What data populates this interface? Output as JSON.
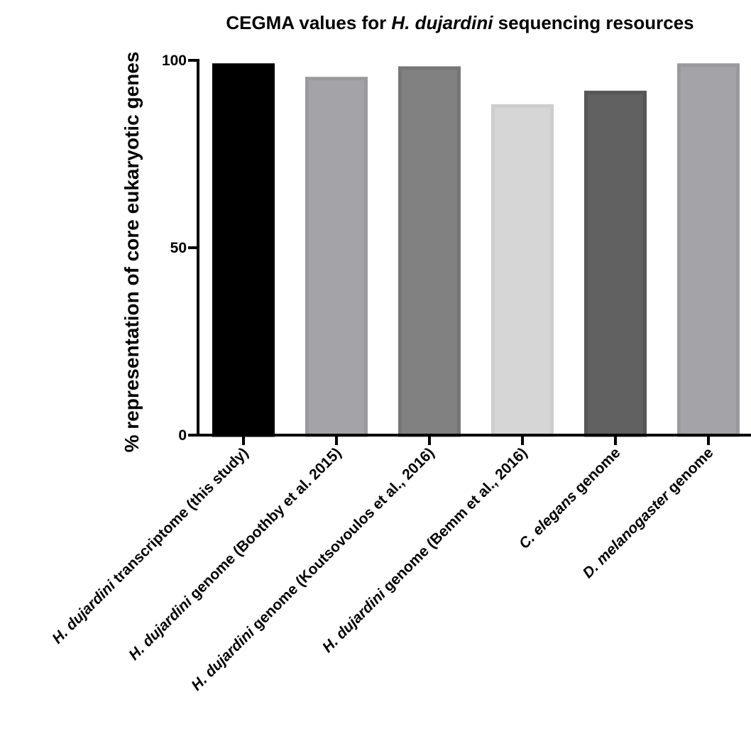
{
  "chart_data": {
    "type": "bar",
    "title_parts": [
      {
        "text": "CEGMA values for ",
        "italic": false
      },
      {
        "text": "H. dujardini",
        "italic": true
      },
      {
        "text": " sequencing resources",
        "italic": false
      }
    ],
    "ylabel": "% representation of core eukaryotic genes",
    "xlabel": "",
    "ylim": [
      0,
      100
    ],
    "yticks": [
      0,
      50,
      100
    ],
    "grid": false,
    "categories": [
      {
        "parts": [
          {
            "text": "H. dujardini",
            "italic": true
          },
          {
            "text": " transcriptome (this study)",
            "italic": false
          }
        ],
        "value": 99.2,
        "color": "#000000",
        "edge": "#000000"
      },
      {
        "parts": [
          {
            "text": "H. dujardini",
            "italic": true
          },
          {
            "text": " genome (Boothby et al. 2015)",
            "italic": false
          }
        ],
        "value": 95.6,
        "color": "#a4a4a8",
        "edge": "#9a9a9e"
      },
      {
        "parts": [
          {
            "text": "H. dujardini",
            "italic": true
          },
          {
            "text": " genome (Koutsovoulos et al., 2016)",
            "italic": false
          }
        ],
        "value": 98.4,
        "color": "#818181",
        "edge": "#767676"
      },
      {
        "parts": [
          {
            "text": "H. dujardini",
            "italic": true
          },
          {
            "text": " genome (Bemm et al., 2016)",
            "italic": false
          }
        ],
        "value": 88.3,
        "color": "#d6d6d6",
        "edge": "#cdcdcd"
      },
      {
        "parts": [
          {
            "text": "C. elegans",
            "italic": true
          },
          {
            "text": " genome",
            "italic": false
          }
        ],
        "value": 91.9,
        "color": "#616161",
        "edge": "#565656"
      },
      {
        "parts": [
          {
            "text": "D. melanogaster",
            "italic": true
          },
          {
            "text": " genome",
            "italic": false
          }
        ],
        "value": 99.2,
        "color": "#a4a4a8",
        "edge": "#9a9a9e"
      }
    ]
  }
}
